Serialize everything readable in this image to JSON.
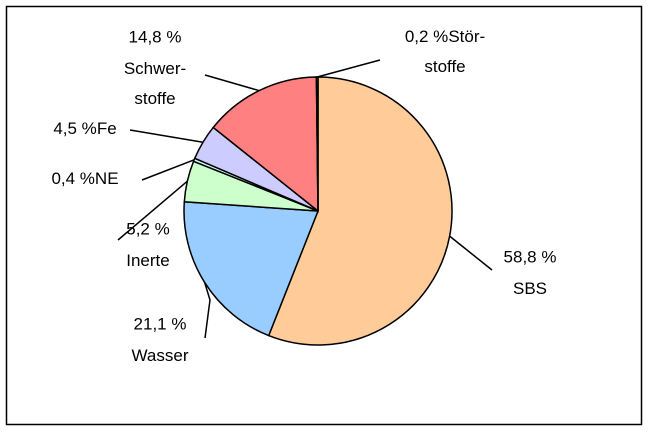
{
  "chart_data": {
    "type": "pie",
    "categories": [
      "SBS",
      "Wasser",
      "Inerte",
      "NE",
      "Fe",
      "Schwer-\nstoffe",
      "Stör-\nstoffe"
    ],
    "values": [
      58.8,
      21.1,
      5.2,
      0.4,
      4.5,
      14.8,
      0.2
    ],
    "value_labels": [
      "58,8 %",
      "21,1 %",
      "5,2 %",
      "0,4 %",
      "4,5 %",
      "14,8 %",
      "0,2 %"
    ],
    "colors": [
      "#FFCC99",
      "#99CCFF",
      "#CCFFCC",
      "#CCFFFF",
      "#CCCCFF",
      "#FF8080",
      "#FFFF99"
    ]
  }
}
